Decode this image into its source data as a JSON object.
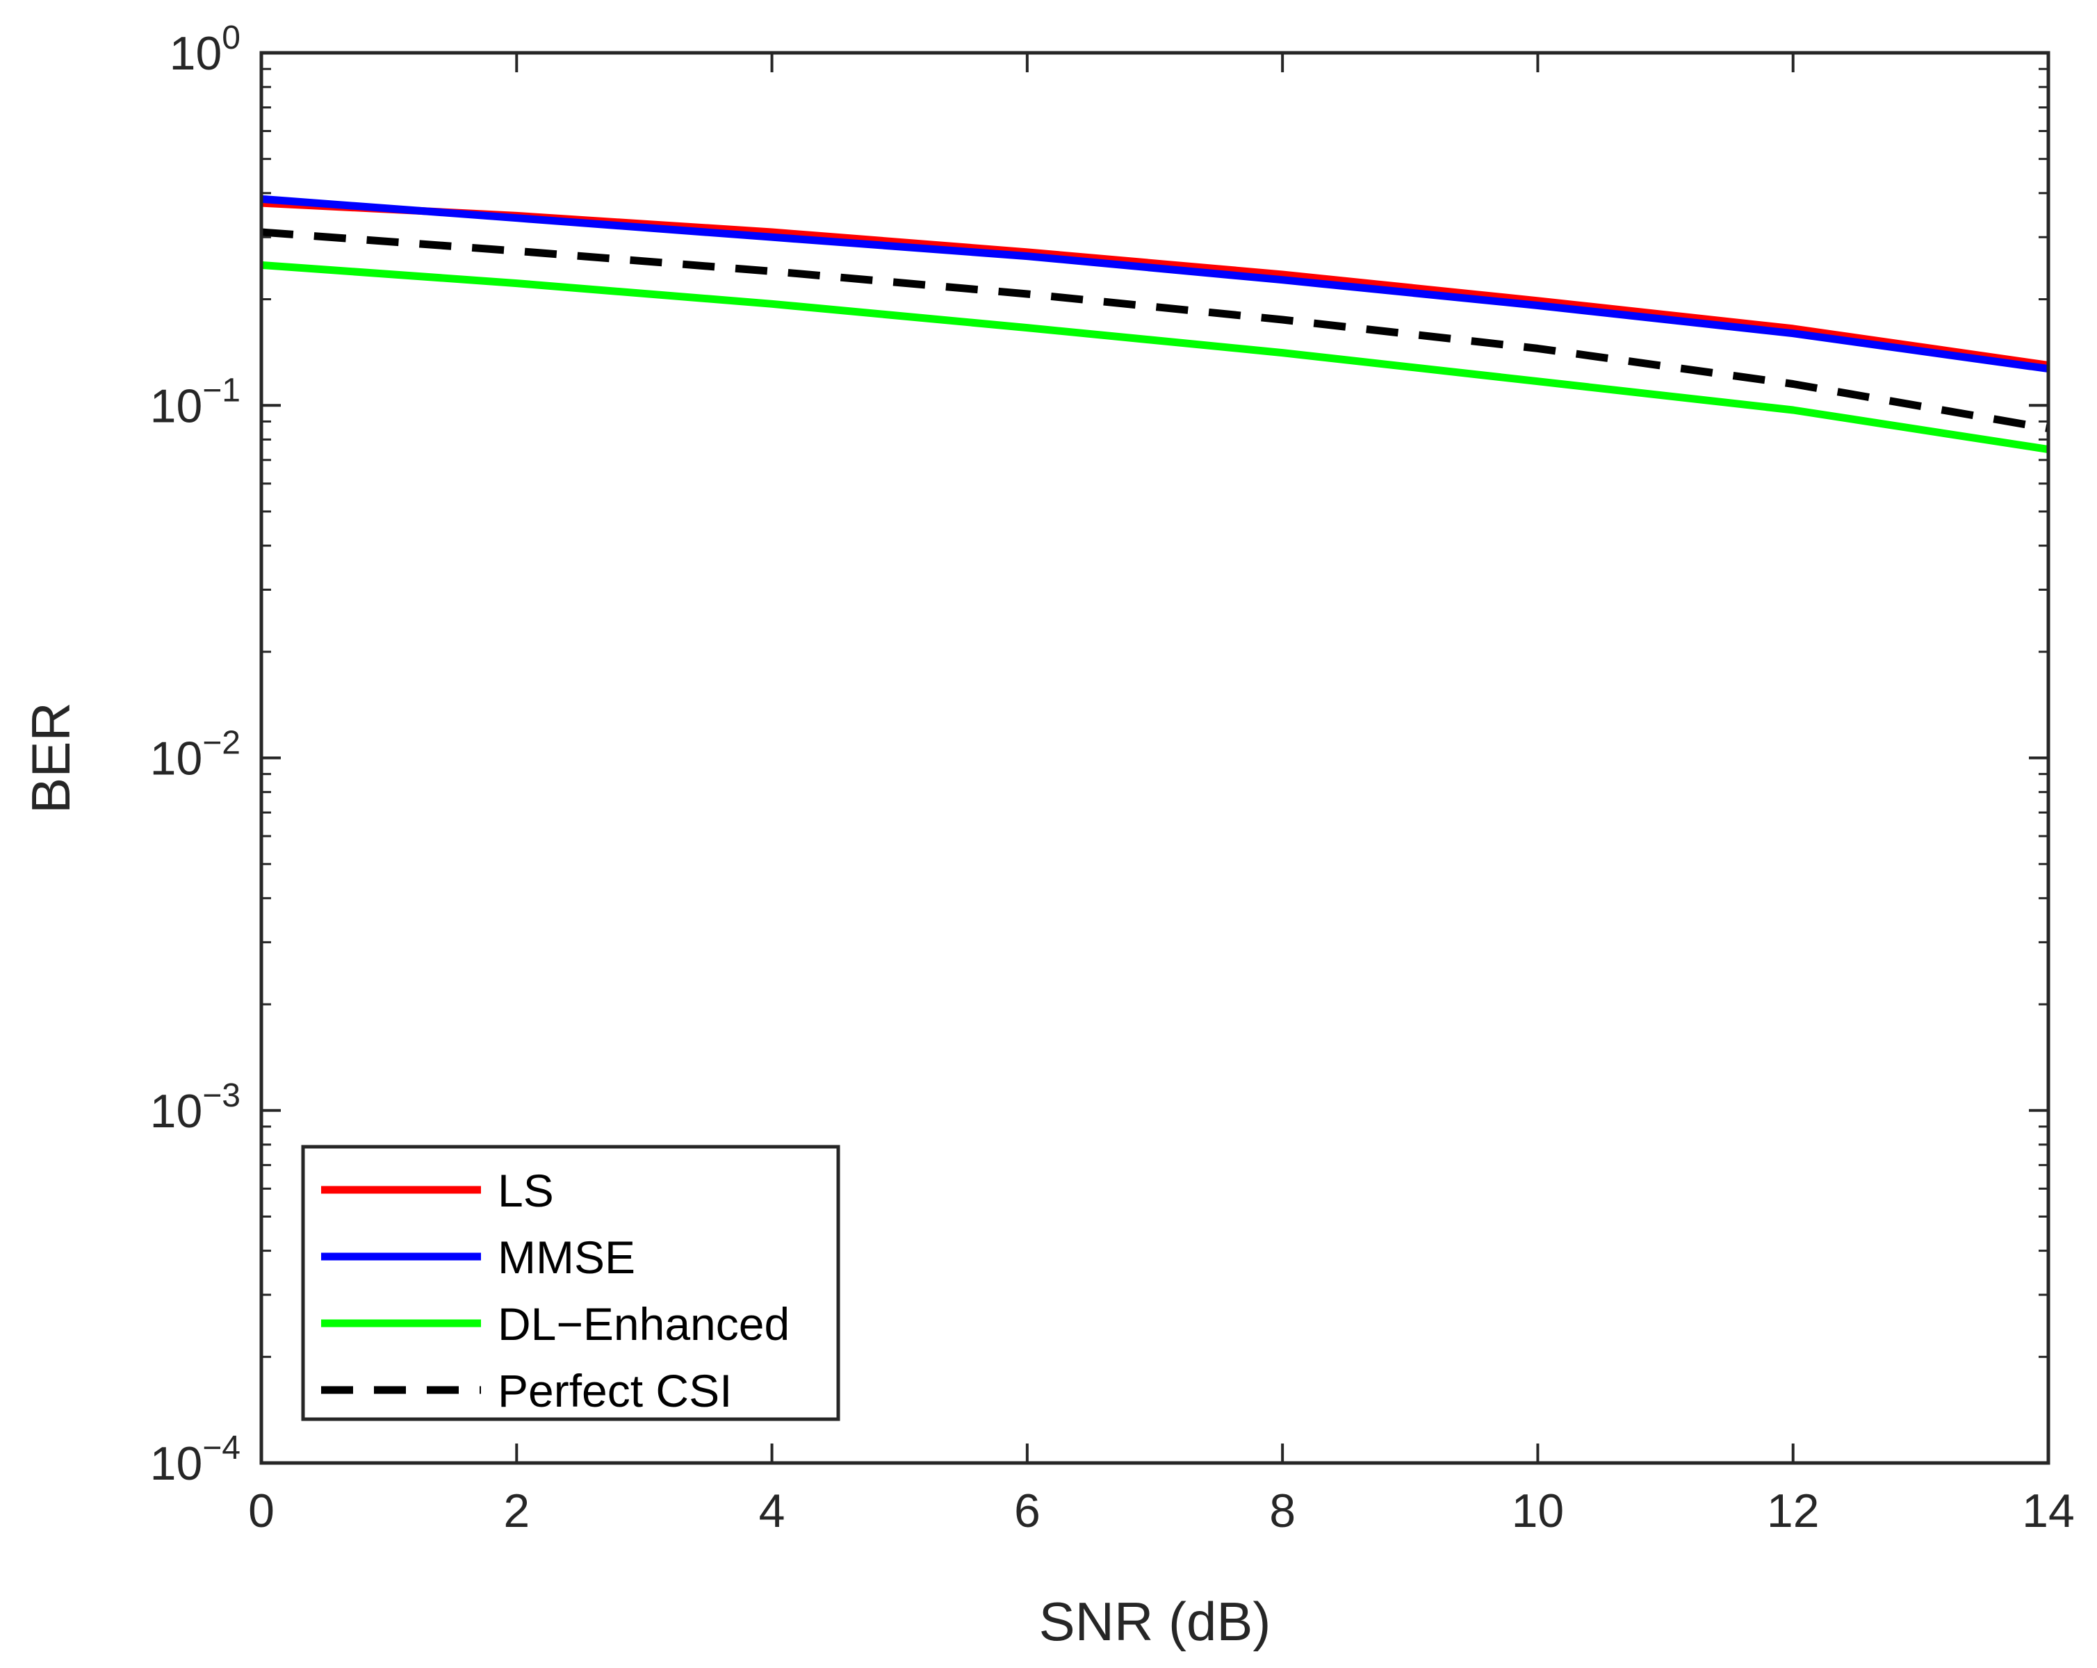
{
  "chart_data": {
    "type": "line",
    "title": "",
    "xlabel": "SNR (dB)",
    "ylabel": "BER",
    "xlim": [
      0,
      14
    ],
    "ylim": [
      0.0001,
      1
    ],
    "yscale": "log",
    "grid": false,
    "x_ticks": [
      "0",
      "2",
      "4",
      "6",
      "8",
      "10",
      "12",
      "14"
    ],
    "y_ticks": [
      {
        "base": "10",
        "exp": "0",
        "value": 1
      },
      {
        "base": "10",
        "exp": "−1",
        "value": 0.1
      },
      {
        "base": "10",
        "exp": "−2",
        "value": 0.01
      },
      {
        "base": "10",
        "exp": "−3",
        "value": 0.001
      },
      {
        "base": "10",
        "exp": "−4",
        "value": 0.0001
      }
    ],
    "legend_position": "bottom-left",
    "x": [
      0,
      2,
      4,
      6,
      8,
      10,
      12,
      14
    ],
    "series": [
      {
        "name": "LS",
        "color": "#ff0000",
        "style": "solid",
        "values": [
          0.375,
          0.345,
          0.31,
          0.272,
          0.235,
          0.198,
          0.165,
          0.13
        ]
      },
      {
        "name": "MMSE",
        "color": "#0000ff",
        "style": "solid",
        "values": [
          0.385,
          0.34,
          0.3,
          0.265,
          0.227,
          0.192,
          0.16,
          0.127
        ]
      },
      {
        "name": "DL−Enhanced",
        "color": "#00ff00",
        "style": "solid",
        "values": [
          0.25,
          0.222,
          0.194,
          0.166,
          0.141,
          0.117,
          0.097,
          0.075
        ]
      },
      {
        "name": "Perfect CSI",
        "color": "#000000",
        "style": "dashed",
        "values": [
          0.31,
          0.274,
          0.24,
          0.207,
          0.175,
          0.145,
          0.115,
          0.086
        ]
      }
    ]
  }
}
